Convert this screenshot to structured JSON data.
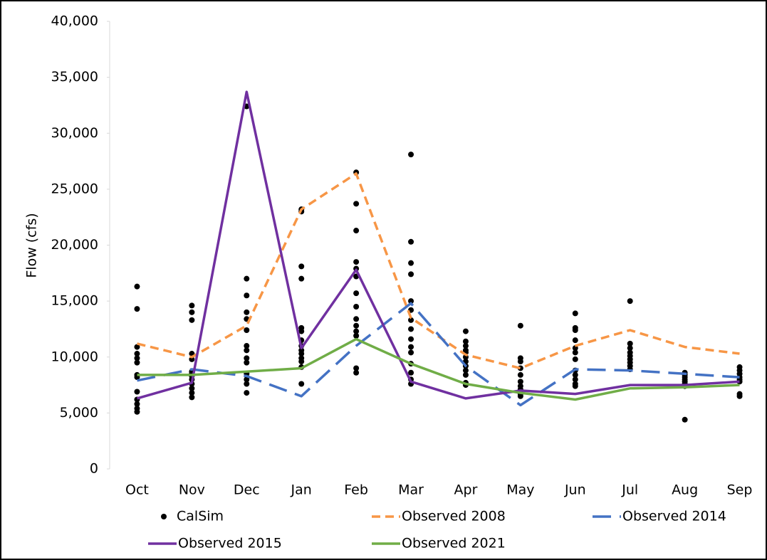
{
  "chart_data": {
    "type": "line",
    "y_label": "Flow (cfs)",
    "categories": [
      "Oct",
      "Nov",
      "Dec",
      "Jan",
      "Feb",
      "Mar",
      "Apr",
      "May",
      "Jun",
      "Jul",
      "Aug",
      "Sep"
    ],
    "ylim": [
      0,
      40000
    ],
    "yticks": [
      0,
      {
        "value": 5000,
        "label": "5,000"
      },
      {
        "value": 10000,
        "label": "10,000"
      },
      {
        "value": 15000,
        "label": "15,000"
      },
      {
        "value": 20000,
        "label": "20,000"
      },
      {
        "value": 25000,
        "label": "25,000"
      },
      {
        "value": 30000,
        "label": "30,000"
      },
      {
        "value": 35000,
        "label": "35,000"
      },
      {
        "value": 40000,
        "label": "40,000"
      }
    ],
    "grid": false,
    "legend": "bottom",
    "series": [
      {
        "name": "CalSim",
        "type": "scatter",
        "color": "#000000",
        "values": [
          [
            16300,
            14300,
            10900,
            10300,
            9900,
            9500,
            8400,
            8200,
            6900,
            6200,
            5800,
            5400,
            5100
          ],
          [
            14600,
            14000,
            13300,
            10300,
            9800,
            8700,
            8500,
            8300,
            8000,
            7600,
            7200,
            6800,
            6400
          ],
          [
            32400,
            17000,
            15500,
            14000,
            13400,
            12400,
            11000,
            10600,
            9900,
            9500,
            8500,
            8000,
            7600,
            6800
          ],
          [
            23200,
            23000,
            18100,
            17000,
            12600,
            12300,
            11500,
            11000,
            10600,
            10300,
            9900,
            9600,
            9100,
            7600
          ],
          [
            26500,
            23700,
            21300,
            18500,
            17900,
            17200,
            15700,
            14500,
            13400,
            12800,
            12300,
            11900,
            9000,
            8600
          ],
          [
            28100,
            20300,
            18400,
            17400,
            15000,
            14200,
            13300,
            12500,
            11600,
            10900,
            10400,
            9400,
            8600,
            8000,
            7600
          ],
          [
            12300,
            11400,
            11000,
            10600,
            10400,
            10000,
            9600,
            9200,
            8800,
            8400,
            7700,
            7500
          ],
          [
            12800,
            9900,
            9600,
            9000,
            8400,
            7800,
            7400,
            7100,
            6900,
            6700,
            6500
          ],
          [
            13900,
            12600,
            12400,
            11500,
            10800,
            10400,
            9800,
            8800,
            8400,
            8000,
            7600,
            7400
          ],
          [
            15000,
            11200,
            10800,
            10400,
            10100,
            9800,
            9500,
            9200,
            8900
          ],
          [
            8600,
            8400,
            8200,
            8000,
            7800,
            7600,
            7400,
            4400
          ],
          [
            9100,
            8800,
            8500,
            8200,
            8000,
            7800,
            6700,
            6500
          ]
        ]
      },
      {
        "name": "Observed 2008",
        "type": "line",
        "dash": "short",
        "color": "#f79646",
        "values": [
          11200,
          10000,
          12800,
          23200,
          26400,
          13500,
          10200,
          9000,
          11000,
          12400,
          10900,
          10300
        ]
      },
      {
        "name": "Observed 2014",
        "type": "line",
        "dash": "long",
        "color": "#4472c4",
        "values": [
          7900,
          8900,
          8300,
          6500,
          11000,
          14800,
          9200,
          5700,
          8900,
          8800,
          8500,
          8200
        ]
      },
      {
        "name": "Observed 2015",
        "type": "line",
        "dash": "solid",
        "color": "#7030a0",
        "values": [
          6300,
          7700,
          33700,
          10800,
          17800,
          7800,
          6300,
          7000,
          6700,
          7500,
          7500,
          7800
        ]
      },
      {
        "name": "Observed 2021",
        "type": "line",
        "dash": "solid",
        "color": "#70ad47",
        "values": [
          8400,
          8400,
          8700,
          9000,
          11600,
          9400,
          7600,
          6800,
          6200,
          7200,
          7300,
          7500
        ]
      }
    ]
  }
}
